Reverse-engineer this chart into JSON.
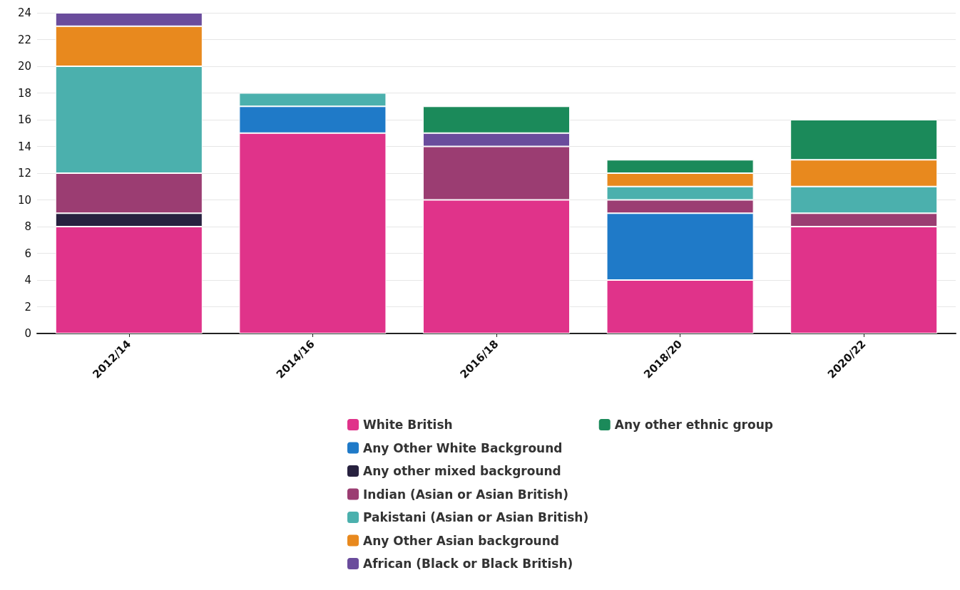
{
  "chart_data": {
    "type": "bar",
    "stacked": true,
    "categories": [
      "2012/14",
      "2014/16",
      "2016/18",
      "2018/20",
      "2020/22"
    ],
    "series": [
      {
        "name": "White British",
        "color": "#e0338a",
        "values": [
          8,
          15,
          10,
          4,
          8
        ]
      },
      {
        "name": "Any Other White Background",
        "color": "#1f7ac8",
        "values": [
          null,
          2,
          null,
          5,
          null
        ]
      },
      {
        "name": "Any other mixed background",
        "color": "#27213f",
        "values": [
          1,
          null,
          null,
          null,
          null
        ]
      },
      {
        "name": "Indian (Asian or Asian British)",
        "color": "#9b3d72",
        "values": [
          3,
          null,
          4,
          1,
          1
        ]
      },
      {
        "name": "Pakistani (Asian or Asian British)",
        "color": "#4bb0ad",
        "values": [
          8,
          1,
          null,
          1,
          2
        ]
      },
      {
        "name": "Any Other Asian background",
        "color": "#e8891e",
        "values": [
          3,
          null,
          null,
          1,
          2
        ]
      },
      {
        "name": "African (Black or Black British)",
        "color": "#6a4c9c",
        "values": [
          1,
          null,
          1,
          null,
          null
        ]
      },
      {
        "name": "Any other ethnic group",
        "color": "#1b8a5a",
        "values": [
          null,
          null,
          2,
          1,
          3
        ]
      }
    ],
    "ylim": [
      0,
      24
    ],
    "yticks": [
      0,
      2,
      4,
      6,
      8,
      10,
      12,
      14,
      16,
      18,
      20,
      22,
      24
    ],
    "grid": "y",
    "legend": "bottom"
  }
}
